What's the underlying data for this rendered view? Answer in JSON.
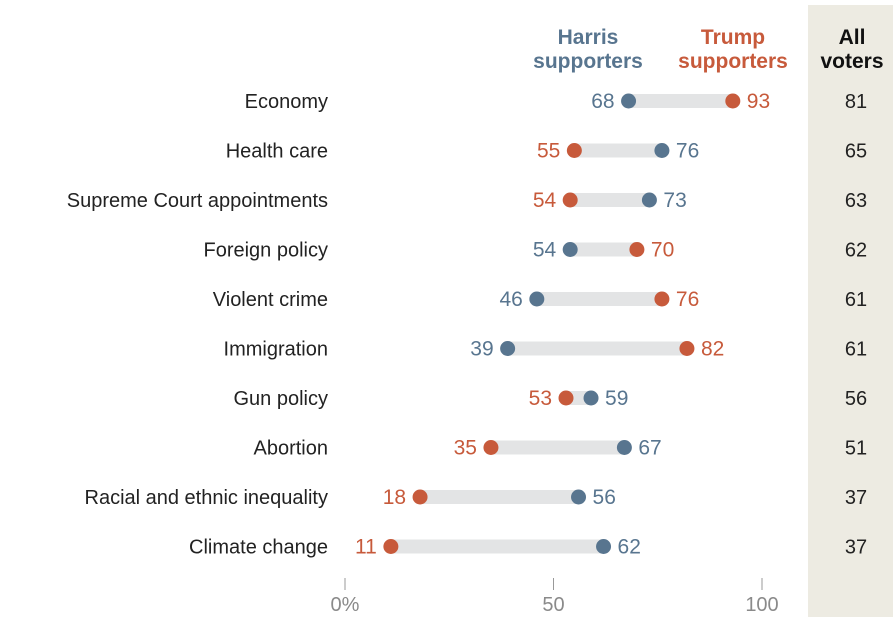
{
  "chart_data": {
    "type": "dot-plot",
    "legend": {
      "harris_line1": "Harris",
      "harris_line2": "supporters",
      "trump_line1": "Trump",
      "trump_line2": "supporters",
      "all_line1": "All",
      "all_line2": "voters"
    },
    "x_ticks": [
      "0%",
      "50",
      "100"
    ],
    "xlim": [
      0,
      100
    ],
    "colors": {
      "harris": "#58758F",
      "trump": "#C75A3B",
      "connector": "#E3E4E5",
      "all_voters_panel": "#EDEBE2",
      "label": "#222222",
      "axis": "#999999"
    },
    "categories": [
      "Economy",
      "Health care",
      "Supreme Court appointments",
      "Foreign policy",
      "Violent crime",
      "Immigration",
      "Gun policy",
      "Abortion",
      "Racial and ethnic inequality",
      "Climate change"
    ],
    "series": [
      {
        "name": "Harris supporters",
        "values": [
          68,
          76,
          73,
          54,
          46,
          39,
          59,
          67,
          56,
          62
        ]
      },
      {
        "name": "Trump supporters",
        "values": [
          93,
          55,
          54,
          70,
          76,
          82,
          53,
          35,
          18,
          11
        ]
      },
      {
        "name": "All voters",
        "values": [
          81,
          65,
          63,
          62,
          61,
          61,
          56,
          51,
          37,
          37
        ]
      }
    ]
  }
}
